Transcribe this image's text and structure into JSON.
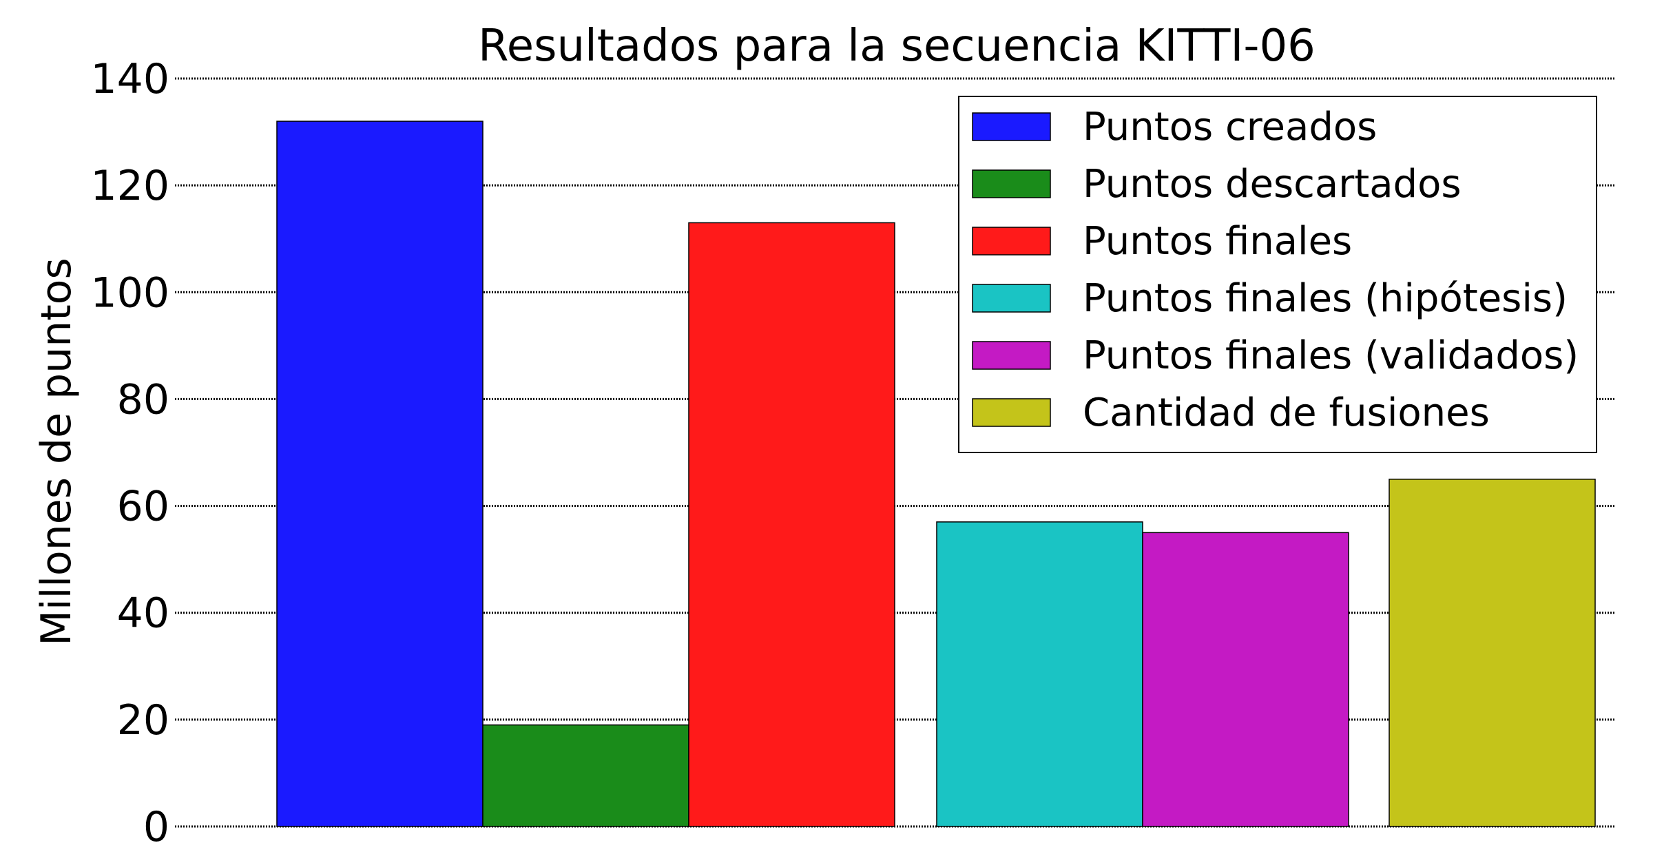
{
  "chart_data": {
    "type": "bar",
    "title": "Resultados para la secuencia KITTI-06",
    "xlabel": "",
    "ylabel": "Millones de puntos",
    "ylim": [
      0,
      140
    ],
    "yticks": [
      0,
      20,
      40,
      60,
      80,
      100,
      120,
      140
    ],
    "grid": true,
    "legend_position": "top-right",
    "series": [
      {
        "name": "Puntos creados",
        "value": 132,
        "color": "#1a1aff"
      },
      {
        "name": "Puntos descartados",
        "value": 19,
        "color": "#1a8c1a"
      },
      {
        "name": "Puntos finales",
        "value": 113,
        "color": "#ff1a1a"
      },
      {
        "name": "Puntos finales (hipótesis)",
        "value": 57,
        "color": "#1ac4c4"
      },
      {
        "name": "Puntos finales (validados)",
        "value": 55,
        "color": "#c41ac4"
      },
      {
        "name": "Cantidad de fusiones",
        "value": 65,
        "color": "#c4c41a"
      }
    ]
  }
}
